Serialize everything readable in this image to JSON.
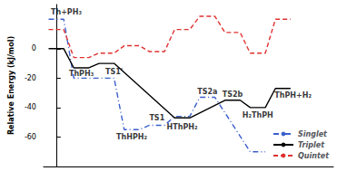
{
  "chart_data": {
    "type": "energy_profile",
    "y_label": "Relative Energy (kJ/mol)",
    "x": [
      0,
      1,
      2,
      3,
      4,
      5,
      6,
      7,
      8,
      9
    ],
    "xlim": [
      -0.5,
      11
    ],
    "ylim": [
      -80,
      30
    ],
    "yticks": [
      -60,
      -40,
      -20,
      0
    ],
    "tick_labels": "y",
    "grid": false,
    "legend": "lower right",
    "series": [
      {
        "name": "Singlet",
        "color": "#3a5fcd",
        "line_style": "dashdot",
        "values": [
          20,
          -20,
          -20,
          -55,
          -52,
          -46,
          -33,
          null,
          -70,
          null
        ]
      },
      {
        "name": "Triplet",
        "color": "#000000",
        "line_style": "solid",
        "values": [
          0,
          -13,
          -10,
          null,
          null,
          -47,
          null,
          -35,
          -40,
          -27
        ]
      },
      {
        "name": "Quintet",
        "color": "#e03030",
        "line_style": "dashed",
        "values": [
          13,
          -6,
          -3,
          2,
          -2,
          13,
          22,
          11,
          -3,
          20
        ]
      }
    ],
    "annotations": [
      {
        "text": "Th+PH₃",
        "x": 0.4,
        "y": 25
      },
      {
        "text": "ThPH₃",
        "x": 1.0,
        "y": -17
      },
      {
        "text": "TS1'",
        "x": 2.3,
        "y": -16
      },
      {
        "text": "ThHPH₂",
        "x": 3.0,
        "y": -60
      },
      {
        "text": "TS1",
        "x": 4.0,
        "y": -47
      },
      {
        "text": "HThPH₂",
        "x": 5.0,
        "y": -53
      },
      {
        "text": "TS2a",
        "x": 6.0,
        "y": -29
      },
      {
        "text": "TS2b",
        "x": 7.0,
        "y": -31
      },
      {
        "text": "H₂ThPH",
        "x": 8.0,
        "y": -45
      },
      {
        "text": "ThPH+H₂",
        "x": 9.4,
        "y": -32
      }
    ]
  }
}
